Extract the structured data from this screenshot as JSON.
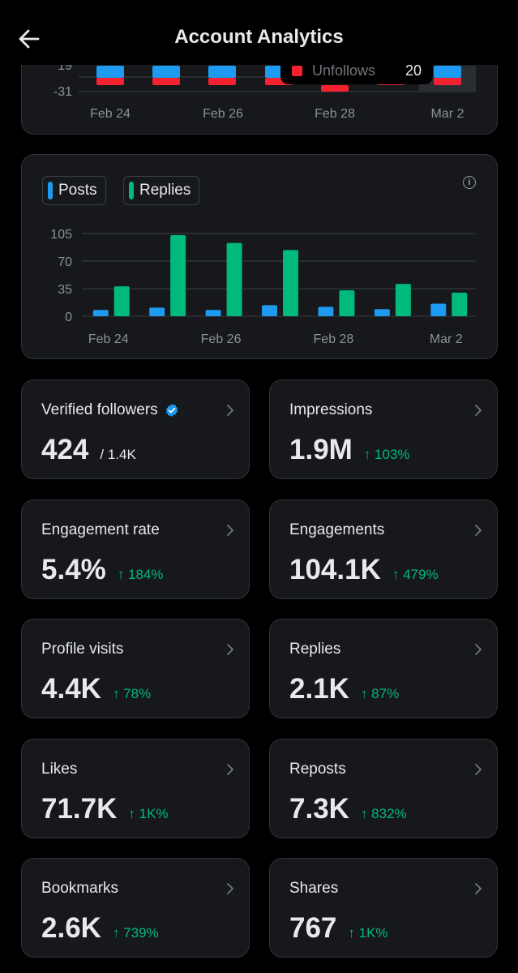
{
  "header": {
    "title": "Account Analytics"
  },
  "top_chart": {
    "y_ticks": [
      "19",
      "-31"
    ],
    "x_labels": [
      "Feb 24",
      "Feb 26",
      "Feb 28",
      "Mar 2"
    ],
    "tooltip": {
      "label": "Unfollows",
      "value": "20"
    },
    "colors": {
      "follows": "#1d9bf0",
      "unfollows": "#f4212e"
    }
  },
  "posts_chart": {
    "legend": [
      {
        "label": "Posts",
        "color": "#1d9bf0"
      },
      {
        "label": "Replies",
        "color": "#00ba7c"
      }
    ],
    "info_icon": "info-icon",
    "chart_data": {
      "type": "bar",
      "categories": [
        "Feb 24",
        "Feb 25",
        "Feb 26",
        "Feb 27",
        "Feb 28",
        "Mar 1",
        "Mar 2"
      ],
      "x_tick_labels": [
        "Feb 24",
        "Feb 26",
        "Feb 28",
        "Mar 2"
      ],
      "y_ticks": [
        0,
        35,
        70,
        105
      ],
      "ylim": [
        0,
        105
      ],
      "series": [
        {
          "name": "Posts",
          "color": "#1d9bf0",
          "values": [
            8,
            11,
            8,
            14,
            12,
            9,
            16
          ]
        },
        {
          "name": "Replies",
          "color": "#00ba7c",
          "values": [
            38,
            103,
            93,
            84,
            33,
            41,
            30
          ]
        }
      ]
    }
  },
  "metrics": [
    {
      "label": "Verified followers",
      "value": "424",
      "sub": "/ 1.4K",
      "change": "",
      "verified": true
    },
    {
      "label": "Impressions",
      "value": "1.9M",
      "sub": "",
      "change": "↑ 103%"
    },
    {
      "label": "Engagement rate",
      "value": "5.4%",
      "sub": "",
      "change": "↑ 184%"
    },
    {
      "label": "Engagements",
      "value": "104.1K",
      "sub": "",
      "change": "↑ 479%"
    },
    {
      "label": "Profile visits",
      "value": "4.4K",
      "sub": "",
      "change": "↑ 78%"
    },
    {
      "label": "Replies",
      "value": "2.1K",
      "sub": "",
      "change": "↑ 87%"
    },
    {
      "label": "Likes",
      "value": "71.7K",
      "sub": "",
      "change": "↑ 1K%"
    },
    {
      "label": "Reposts",
      "value": "7.3K",
      "sub": "",
      "change": "↑ 832%"
    },
    {
      "label": "Bookmarks",
      "value": "2.6K",
      "sub": "",
      "change": "↑ 739%"
    },
    {
      "label": "Shares",
      "value": "767",
      "sub": "",
      "change": "↑ 1K%"
    }
  ]
}
